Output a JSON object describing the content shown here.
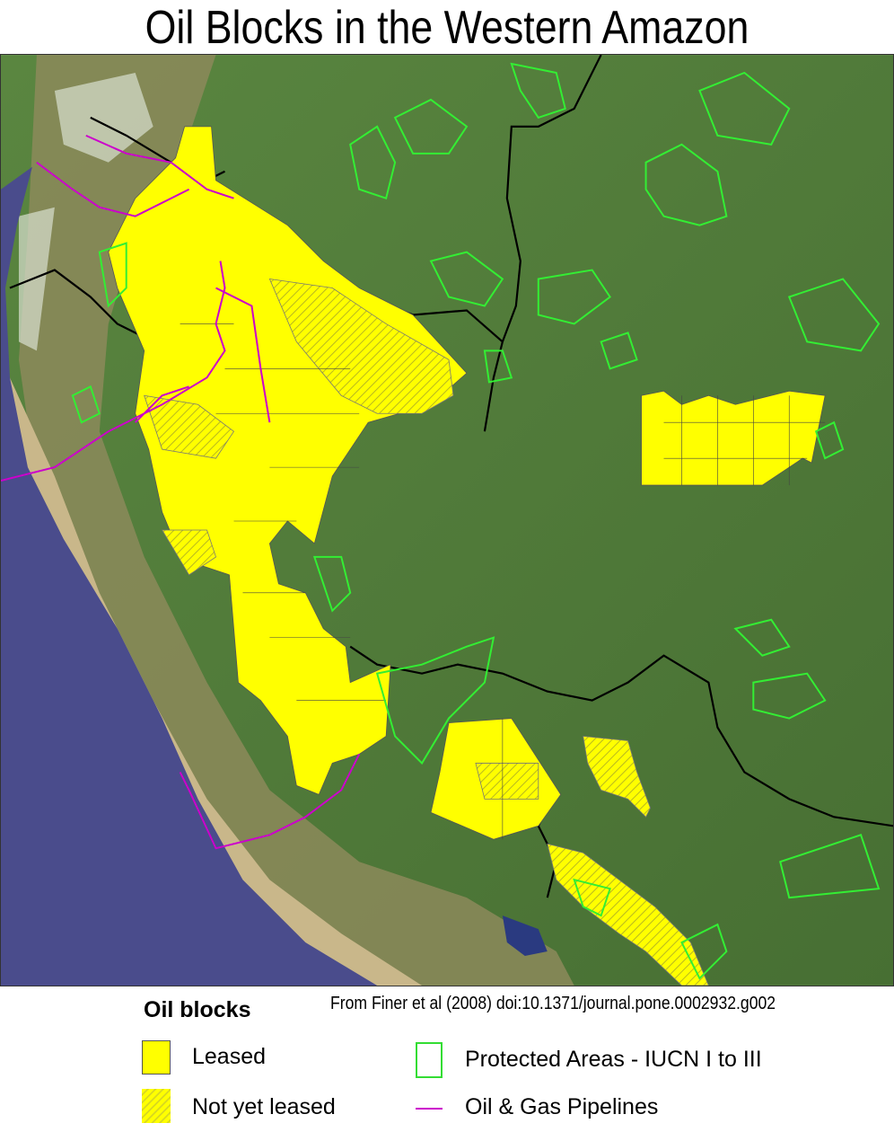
{
  "title": "Oil Blocks in the Western Amazon",
  "citation": "From Finer et al (2008) doi:10.1371/journal.pone.0002932.g002",
  "legend": {
    "heading": "Oil blocks",
    "items": [
      {
        "label": "Leased",
        "color": "#ffff00",
        "style": "solid-fill"
      },
      {
        "label": "Not yet leased",
        "color": "#ffff00",
        "style": "hatched-fill"
      },
      {
        "label": "Protected Areas - IUCN I to III",
        "color": "#33dd33",
        "style": "outline"
      },
      {
        "label": "Oil & Gas Pipelines",
        "color": "#cc00cc",
        "style": "line"
      }
    ]
  },
  "colors": {
    "ocean": "#4a4c8c",
    "forest": "#4f7a38",
    "andes": "#b8a57a",
    "borders": "#000000"
  }
}
